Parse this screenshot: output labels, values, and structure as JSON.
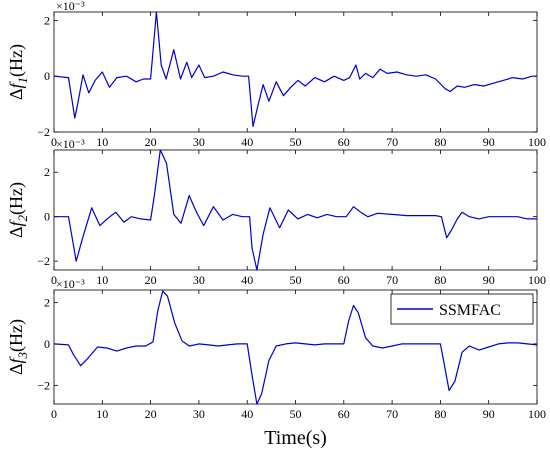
{
  "chart_data": [
    {
      "type": "line",
      "ylabel": "Δf1(Hz)",
      "ylabel_parts": {
        "prefix": "Δ",
        "var": "f",
        "sub": "1",
        "suffix": "(Hz)"
      },
      "exponent_label": "×10⁻³",
      "xlim": [
        0,
        100
      ],
      "ylim": [
        -2,
        2.3
      ],
      "xticks": [
        "0",
        "10",
        "20",
        "30",
        "40",
        "50",
        "60",
        "70",
        "80",
        "90",
        "100"
      ],
      "yticks": [
        {
          "value": 2,
          "label": "2"
        },
        {
          "value": 0,
          "label": "0"
        },
        {
          "value": -2,
          "label": "−2"
        }
      ],
      "series": [
        {
          "color": "#0000cc",
          "points": [
            [
              0,
              0
            ],
            [
              3,
              -0.05
            ],
            [
              4.3,
              -1.5
            ],
            [
              5,
              -0.9
            ],
            [
              6,
              0.05
            ],
            [
              7.2,
              -0.6
            ],
            [
              8.5,
              -0.15
            ],
            [
              10,
              0.15
            ],
            [
              11.5,
              -0.4
            ],
            [
              13,
              -0.05
            ],
            [
              15,
              0.0
            ],
            [
              17,
              -0.2
            ],
            [
              18.5,
              -0.1
            ],
            [
              20,
              -0.1
            ],
            [
              21.2,
              2.3
            ],
            [
              22.2,
              0.4
            ],
            [
              23.2,
              -0.1
            ],
            [
              24.8,
              0.95
            ],
            [
              26.2,
              -0.1
            ],
            [
              27.5,
              0.5
            ],
            [
              28.5,
              -0.05
            ],
            [
              30,
              0.4
            ],
            [
              31.2,
              -0.05
            ],
            [
              33,
              0.0
            ],
            [
              35,
              0.15
            ],
            [
              37,
              0.05
            ],
            [
              39,
              0.0
            ],
            [
              40.3,
              0.0
            ],
            [
              41.2,
              -1.8
            ],
            [
              42.3,
              -1.0
            ],
            [
              43.3,
              -0.3
            ],
            [
              44.5,
              -0.9
            ],
            [
              46,
              -0.2
            ],
            [
              47.5,
              -0.7
            ],
            [
              49,
              -0.4
            ],
            [
              50.5,
              -0.15
            ],
            [
              52,
              -0.35
            ],
            [
              54,
              -0.05
            ],
            [
              56,
              -0.2
            ],
            [
              58,
              0.0
            ],
            [
              60,
              -0.15
            ],
            [
              61.2,
              -0.05
            ],
            [
              62.5,
              0.4
            ],
            [
              63.3,
              -0.1
            ],
            [
              64.5,
              0.1
            ],
            [
              66,
              -0.05
            ],
            [
              67.5,
              0.25
            ],
            [
              69,
              0.1
            ],
            [
              71,
              0.15
            ],
            [
              73,
              0.05
            ],
            [
              75,
              0.0
            ],
            [
              77,
              0.05
            ],
            [
              79,
              -0.1
            ],
            [
              81,
              -0.45
            ],
            [
              82,
              -0.55
            ],
            [
              83.5,
              -0.35
            ],
            [
              85,
              -0.4
            ],
            [
              87,
              -0.3
            ],
            [
              89,
              -0.35
            ],
            [
              91,
              -0.25
            ],
            [
              93,
              -0.15
            ],
            [
              95,
              -0.05
            ],
            [
              97,
              -0.1
            ],
            [
              99,
              0.0
            ],
            [
              100,
              0.0
            ]
          ]
        }
      ]
    },
    {
      "type": "line",
      "ylabel": "Δf2(Hz)",
      "ylabel_parts": {
        "prefix": "Δ",
        "var": "f",
        "sub": "2",
        "suffix": "(Hz)"
      },
      "exponent_label": "×10⁻³",
      "xlim": [
        0,
        100
      ],
      "ylim": [
        -2.4,
        3
      ],
      "xticks": [
        "0",
        "10",
        "20",
        "30",
        "40",
        "50",
        "60",
        "70",
        "80",
        "90",
        "100"
      ],
      "yticks": [
        {
          "value": 2,
          "label": "2"
        },
        {
          "value": 0,
          "label": "0"
        },
        {
          "value": -2,
          "label": "−2"
        }
      ],
      "series": [
        {
          "color": "#0000cc",
          "points": [
            [
              0,
              0
            ],
            [
              3,
              0.0
            ],
            [
              4.6,
              -2.0
            ],
            [
              6,
              -0.9
            ],
            [
              7.8,
              0.4
            ],
            [
              9.5,
              -0.4
            ],
            [
              11,
              -0.1
            ],
            [
              12.8,
              0.2
            ],
            [
              14.5,
              -0.25
            ],
            [
              16,
              0.0
            ],
            [
              18,
              -0.1
            ],
            [
              20,
              -0.15
            ],
            [
              20.8,
              1.0
            ],
            [
              22,
              3.0
            ],
            [
              23.3,
              2.4
            ],
            [
              24.8,
              0.1
            ],
            [
              26.3,
              -0.3
            ],
            [
              28,
              0.95
            ],
            [
              29.5,
              0.2
            ],
            [
              31,
              -0.4
            ],
            [
              33,
              0.45
            ],
            [
              35,
              -0.15
            ],
            [
              37,
              0.1
            ],
            [
              39,
              0.0
            ],
            [
              40.5,
              0.0
            ],
            [
              41,
              -1.4
            ],
            [
              42,
              -2.4
            ],
            [
              43.3,
              -0.8
            ],
            [
              44.7,
              0.4
            ],
            [
              46.7,
              -0.5
            ],
            [
              48.5,
              0.3
            ],
            [
              50.5,
              -0.1
            ],
            [
              52.5,
              0.1
            ],
            [
              54.5,
              -0.05
            ],
            [
              56.5,
              0.1
            ],
            [
              58.5,
              0.0
            ],
            [
              60.5,
              0.0
            ],
            [
              62,
              0.45
            ],
            [
              63.5,
              0.2
            ],
            [
              65,
              0.0
            ],
            [
              67,
              0.15
            ],
            [
              70,
              0.1
            ],
            [
              73,
              0.05
            ],
            [
              76,
              0.05
            ],
            [
              79,
              0.05
            ],
            [
              80.2,
              0.0
            ],
            [
              81.3,
              -0.95
            ],
            [
              82.3,
              -0.6
            ],
            [
              83.5,
              -0.1
            ],
            [
              84.5,
              0.2
            ],
            [
              86,
              0.0
            ],
            [
              88,
              -0.1
            ],
            [
              90,
              0.0
            ],
            [
              92,
              0.0
            ],
            [
              94,
              0.0
            ],
            [
              96,
              0.0
            ],
            [
              98,
              -0.1
            ],
            [
              100,
              -0.1
            ]
          ]
        }
      ]
    },
    {
      "type": "line",
      "ylabel": "Δf3(Hz)",
      "ylabel_parts": {
        "prefix": "Δ",
        "var": "f",
        "sub": "3",
        "suffix": "(Hz)"
      },
      "exponent_label": "×10⁻³",
      "xlabel": "Time(s)",
      "xlim": [
        0,
        100
      ],
      "ylim": [
        -2.9,
        2.6
      ],
      "xticks": [
        "0",
        "10",
        "20",
        "30",
        "40",
        "50",
        "60",
        "70",
        "80",
        "90",
        "100"
      ],
      "yticks": [
        {
          "value": 2,
          "label": "2"
        },
        {
          "value": 0,
          "label": "0"
        },
        {
          "value": -2,
          "label": "−2"
        }
      ],
      "legend": "top-right",
      "series": [
        {
          "name": "SSMFAC",
          "color": "#0000cc",
          "points": [
            [
              0,
              0
            ],
            [
              3,
              -0.05
            ],
            [
              4,
              -0.5
            ],
            [
              5.5,
              -1.05
            ],
            [
              7,
              -0.7
            ],
            [
              9,
              -0.15
            ],
            [
              11,
              -0.2
            ],
            [
              13,
              -0.35
            ],
            [
              15,
              -0.2
            ],
            [
              17,
              -0.1
            ],
            [
              19,
              -0.1
            ],
            [
              20.5,
              0.1
            ],
            [
              21.5,
              1.6
            ],
            [
              22.5,
              2.55
            ],
            [
              23.5,
              2.3
            ],
            [
              25,
              1.0
            ],
            [
              26.5,
              0.15
            ],
            [
              28,
              -0.1
            ],
            [
              30,
              0.0
            ],
            [
              32,
              -0.05
            ],
            [
              34,
              -0.1
            ],
            [
              36,
              -0.05
            ],
            [
              38,
              0.0
            ],
            [
              40,
              0.0
            ],
            [
              41,
              -1.5
            ],
            [
              42,
              -2.9
            ],
            [
              43,
              -2.4
            ],
            [
              44.5,
              -0.8
            ],
            [
              46,
              -0.1
            ],
            [
              48,
              0.0
            ],
            [
              50,
              0.05
            ],
            [
              52,
              0.0
            ],
            [
              54,
              -0.05
            ],
            [
              56,
              0.0
            ],
            [
              58,
              0.0
            ],
            [
              60,
              0.0
            ],
            [
              61,
              1.1
            ],
            [
              62,
              1.85
            ],
            [
              63,
              1.5
            ],
            [
              64.5,
              0.3
            ],
            [
              66,
              -0.1
            ],
            [
              68,
              -0.2
            ],
            [
              70,
              -0.1
            ],
            [
              72,
              0.0
            ],
            [
              74,
              0.0
            ],
            [
              76,
              0.0
            ],
            [
              78,
              0.0
            ],
            [
              80,
              0.0
            ],
            [
              80.8,
              -1.0
            ],
            [
              81.8,
              -2.25
            ],
            [
              83,
              -1.8
            ],
            [
              84.5,
              -0.4
            ],
            [
              86,
              -0.1
            ],
            [
              88,
              -0.3
            ],
            [
              90,
              -0.15
            ],
            [
              92,
              0.0
            ],
            [
              94,
              0.05
            ],
            [
              96,
              0.05
            ],
            [
              98,
              0.0
            ],
            [
              100,
              -0.05
            ]
          ]
        }
      ]
    }
  ]
}
